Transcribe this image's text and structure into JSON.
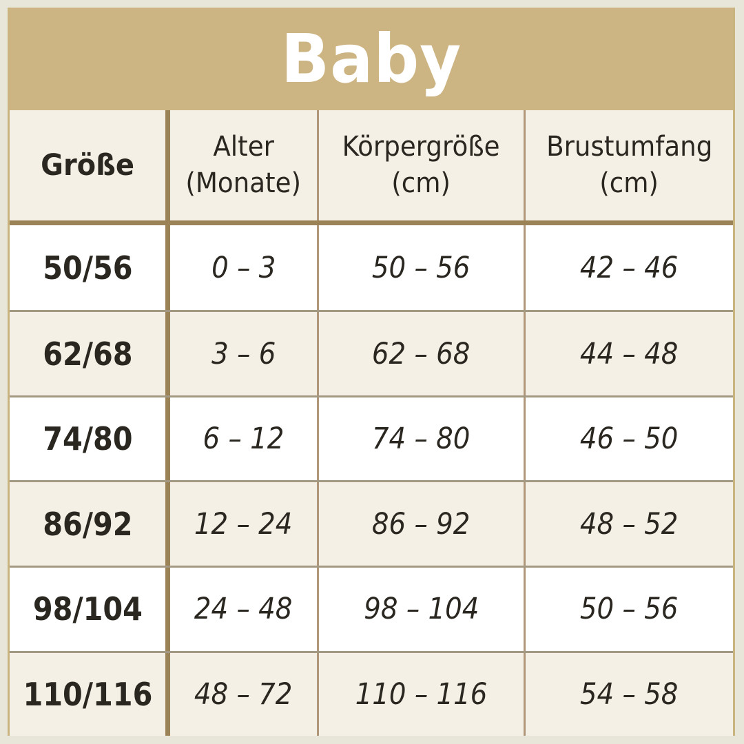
{
  "title": "Baby",
  "colors": {
    "outer_background": "#E8E5D9",
    "banner_gold": "#CDB483",
    "cream": "#F4F0E6",
    "white_row": "#FFFFFF",
    "divider_dark_brown": "#9C8257",
    "divider_light_brown": "#B1977A",
    "edge_gold": "#C9B480",
    "row_separator": "#A39881",
    "text": "#2A2620",
    "title_text": "#FFFFFF"
  },
  "table": {
    "columns": [
      {
        "label": "Größe",
        "sub": ""
      },
      {
        "label": "Alter",
        "sub": "(Monate)"
      },
      {
        "label": "Körpergröße",
        "sub": "(cm)"
      },
      {
        "label": "Brustumfang",
        "sub": "(cm)"
      }
    ],
    "rows": [
      {
        "size": "50/56",
        "age": "0 – 3",
        "height": "50 – 56",
        "chest": "42 – 46"
      },
      {
        "size": "62/68",
        "age": "3 – 6",
        "height": "62 – 68",
        "chest": "44 – 48"
      },
      {
        "size": "74/80",
        "age": "6 – 12",
        "height": "74 – 80",
        "chest": "46 – 50"
      },
      {
        "size": "86/92",
        "age": "12 – 24",
        "height": "86 – 92",
        "chest": "48 – 52"
      },
      {
        "size": "98/104",
        "age": "24 – 48",
        "height": "98 – 104",
        "chest": "50 – 56"
      },
      {
        "size": "110/116",
        "age": "48 – 72",
        "height": "110 – 116",
        "chest": "54 – 58"
      }
    ]
  },
  "chart_data": {
    "type": "table",
    "title": "Baby",
    "columns": [
      "Größe",
      "Alter (Monate)",
      "Körpergröße (cm)",
      "Brustumfang (cm)"
    ],
    "rows": [
      [
        "50/56",
        "0–3",
        "50–56",
        "42–46"
      ],
      [
        "62/68",
        "3–6",
        "62–68",
        "44–48"
      ],
      [
        "74/80",
        "6–12",
        "74–80",
        "46–50"
      ],
      [
        "86/92",
        "12–24",
        "86–92",
        "48–52"
      ],
      [
        "98/104",
        "24–48",
        "98–104",
        "50–56"
      ],
      [
        "110/116",
        "48–72",
        "110–116",
        "54–58"
      ]
    ],
    "notes": "Baby clothing size chart: size label vs age in months, body height in cm, chest circumference in cm"
  }
}
